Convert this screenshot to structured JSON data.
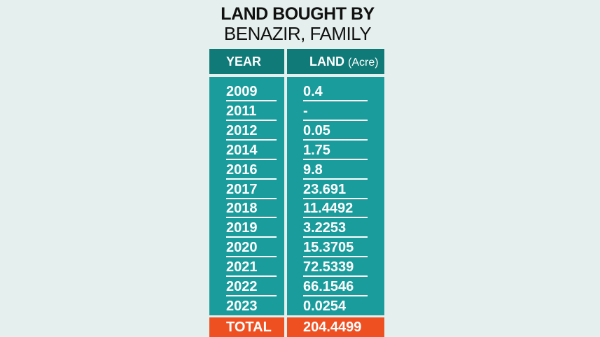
{
  "title_line1": "LAND BOUGHT BY",
  "title_line2": "BENAZIR, FAMILY",
  "colors": {
    "header": "#0f7a77",
    "body": "#1a9c9c",
    "total": "#ef5022",
    "background": "#e5efed"
  },
  "chart_data": {
    "type": "table",
    "columns": [
      "YEAR",
      "LAND",
      "(Acre)"
    ],
    "rows": [
      [
        "2009",
        "0.4"
      ],
      [
        "2011",
        "-"
      ],
      [
        "2012",
        "0.05"
      ],
      [
        "2014",
        "1.75"
      ],
      [
        "2016",
        "9.8"
      ],
      [
        "2017",
        "23.691"
      ],
      [
        "2018",
        "11.4492"
      ],
      [
        "2019",
        "3.2253"
      ],
      [
        "2020",
        "15.3705"
      ],
      [
        "2021",
        "72.5339"
      ],
      [
        "2022",
        "66.1546"
      ],
      [
        "2023",
        "0.0254"
      ]
    ],
    "total": [
      "TOTAL",
      "204.4499"
    ]
  }
}
